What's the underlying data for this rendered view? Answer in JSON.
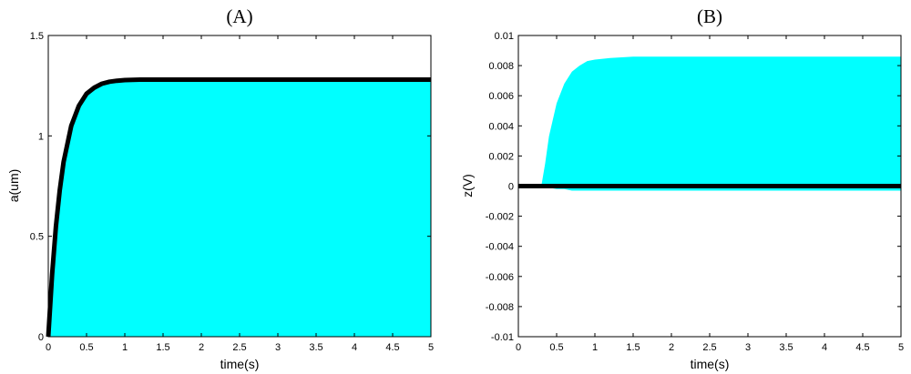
{
  "chart_data": [
    {
      "type": "area",
      "panel_label": "(A)",
      "xlabel": "time(s)",
      "ylabel": "a(um)",
      "xlim": [
        0,
        5
      ],
      "ylim": [
        0,
        1.5
      ],
      "xticks": [
        0,
        0.5,
        1,
        1.5,
        2,
        2.5,
        3,
        3.5,
        4,
        4.5,
        5
      ],
      "xtick_labels": [
        "0",
        "0.5",
        "1",
        "1.5",
        "2",
        "2.5",
        "3",
        "3.5",
        "4",
        "4.5",
        "5"
      ],
      "yticks": [
        0,
        0.5,
        1,
        1.5
      ],
      "ytick_labels": [
        "0",
        "0.5",
        "1",
        "1.5"
      ],
      "grid": false,
      "series": [
        {
          "style": "filled-band",
          "color": "#00ffff",
          "x": [
            0,
            0.05,
            0.1,
            0.15,
            0.2,
            0.3,
            0.4,
            0.5,
            0.6,
            0.7,
            0.8,
            0.9,
            1.0,
            1.2,
            1.5,
            2,
            3,
            4,
            5
          ],
          "upper": [
            0,
            0.31,
            0.55,
            0.73,
            0.87,
            1.05,
            1.15,
            1.21,
            1.24,
            1.26,
            1.27,
            1.275,
            1.278,
            1.28,
            1.28,
            1.28,
            1.28,
            1.28,
            1.28
          ],
          "lower": [
            0,
            0,
            0,
            0,
            0,
            0,
            0,
            0,
            0,
            0,
            0,
            0,
            0,
            0,
            0,
            0,
            0,
            0,
            0
          ]
        },
        {
          "style": "thick-line",
          "color": "#000000",
          "x": [
            0,
            0.05,
            0.1,
            0.15,
            0.2,
            0.3,
            0.4,
            0.5,
            0.6,
            0.7,
            0.8,
            0.9,
            1.0,
            1.2,
            1.5,
            2,
            3,
            4,
            5
          ],
          "y": [
            0,
            0.31,
            0.55,
            0.73,
            0.87,
            1.05,
            1.15,
            1.21,
            1.24,
            1.26,
            1.27,
            1.275,
            1.278,
            1.28,
            1.28,
            1.28,
            1.28,
            1.28,
            1.28
          ]
        }
      ]
    },
    {
      "type": "area",
      "panel_label": "(B)",
      "xlabel": "time(s)",
      "ylabel": "z(V)",
      "xlim": [
        0,
        5
      ],
      "ylim": [
        -0.01,
        0.01
      ],
      "xticks": [
        0,
        0.5,
        1,
        1.5,
        2,
        2.5,
        3,
        3.5,
        4,
        4.5,
        5
      ],
      "xtick_labels": [
        "0",
        "0.5",
        "1",
        "1.5",
        "2",
        "2.5",
        "3",
        "3.5",
        "4",
        "4.5",
        "5"
      ],
      "yticks": [
        0.01,
        0.008,
        0.006,
        0.004,
        0.002,
        0,
        -0.002,
        -0.004,
        -0.006,
        -0.008,
        -0.01
      ],
      "ytick_labels": [
        "0.01",
        "0.008",
        "0.006",
        "0.004",
        "0.002",
        "0",
        "-0.002",
        "-0.004",
        "-0.006",
        "-0.008",
        "-0.01"
      ],
      "grid": false,
      "series": [
        {
          "style": "filled-band",
          "color": "#00ffff",
          "x": [
            0,
            0.3,
            0.35,
            0.4,
            0.5,
            0.6,
            0.7,
            0.8,
            0.9,
            1.0,
            1.2,
            1.5,
            2,
            3,
            4,
            5
          ],
          "upper": [
            0,
            0,
            0.0015,
            0.0033,
            0.0055,
            0.0068,
            0.0076,
            0.008,
            0.0083,
            0.0084,
            0.0085,
            0.0086,
            0.0086,
            0.0086,
            0.0086,
            0.0086
          ],
          "lower": [
            0,
            0,
            0,
            -0.0001,
            -0.0002,
            -0.0002,
            -0.0003,
            -0.0003,
            -0.0003,
            -0.0003,
            -0.0003,
            -0.0003,
            -0.0003,
            -0.0003,
            -0.0003,
            -0.0003
          ]
        },
        {
          "style": "thick-line",
          "color": "#000000",
          "x": [
            0,
            5
          ],
          "y": [
            0,
            0
          ]
        }
      ]
    }
  ]
}
